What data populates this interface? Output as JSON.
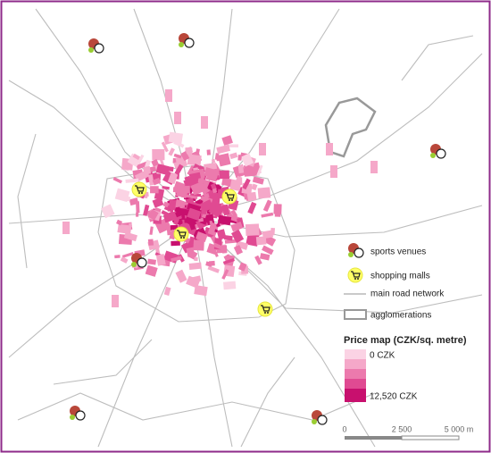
{
  "legend": {
    "items": [
      "sports venues",
      "shopping malls",
      "main road network",
      "agglomerations"
    ],
    "price_map": {
      "title": "Price map (CZK/sq. metre)",
      "min_label": "0 CZK",
      "max_label": "12,520 CZK"
    }
  },
  "scale_bar": {
    "labels": [
      "0",
      "2 500",
      "5 000 m"
    ]
  }
}
